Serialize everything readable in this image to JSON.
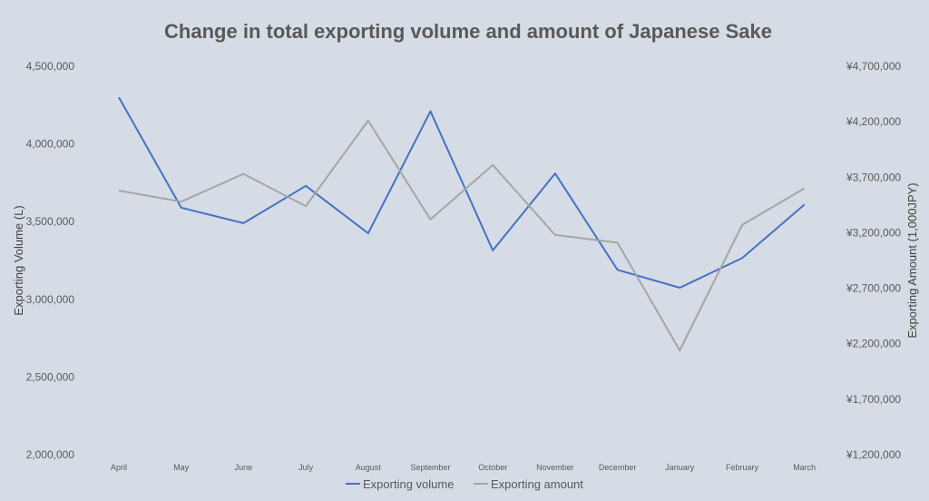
{
  "chart_data": {
    "type": "line",
    "title": "Change in total exporting volume and amount of Japanese Sake",
    "categories": [
      "April",
      "May",
      "June",
      "July",
      "August",
      "September",
      "October",
      "November",
      "December",
      "January",
      "February",
      "March"
    ],
    "y_left": {
      "label": "Exporting Volume (L)",
      "range": [
        2000000,
        4500000
      ],
      "ticks": [
        "2,000,000",
        "2,500,000",
        "3,000,000",
        "3,500,000",
        "4,000,000",
        "4,500,000"
      ]
    },
    "y_right": {
      "label": "Exporting Amount (1,000JPY)",
      "range": [
        1200000,
        4700000
      ],
      "ticks": [
        "¥1,200,000",
        "¥1,700,000",
        "¥2,200,000",
        "¥2,700,000",
        "¥3,200,000",
        "¥3,700,000",
        "¥4,200,000",
        "¥4,700,000"
      ]
    },
    "series": [
      {
        "name": "Exporting volume",
        "axis": "left",
        "color": "#4472c4",
        "values": [
          4300000,
          3590000,
          3490000,
          3730000,
          3425000,
          4210000,
          3315000,
          3810000,
          3190000,
          3075000,
          3265000,
          3610000
        ]
      },
      {
        "name": "Exporting amount",
        "axis": "right",
        "color": "#a5a5a5",
        "values": [
          3580000,
          3480000,
          3730000,
          3440000,
          4210000,
          3320000,
          3810000,
          3180000,
          3110000,
          2140000,
          3270000,
          3600000
        ]
      }
    ],
    "legend": "bottom",
    "grid": false
  }
}
